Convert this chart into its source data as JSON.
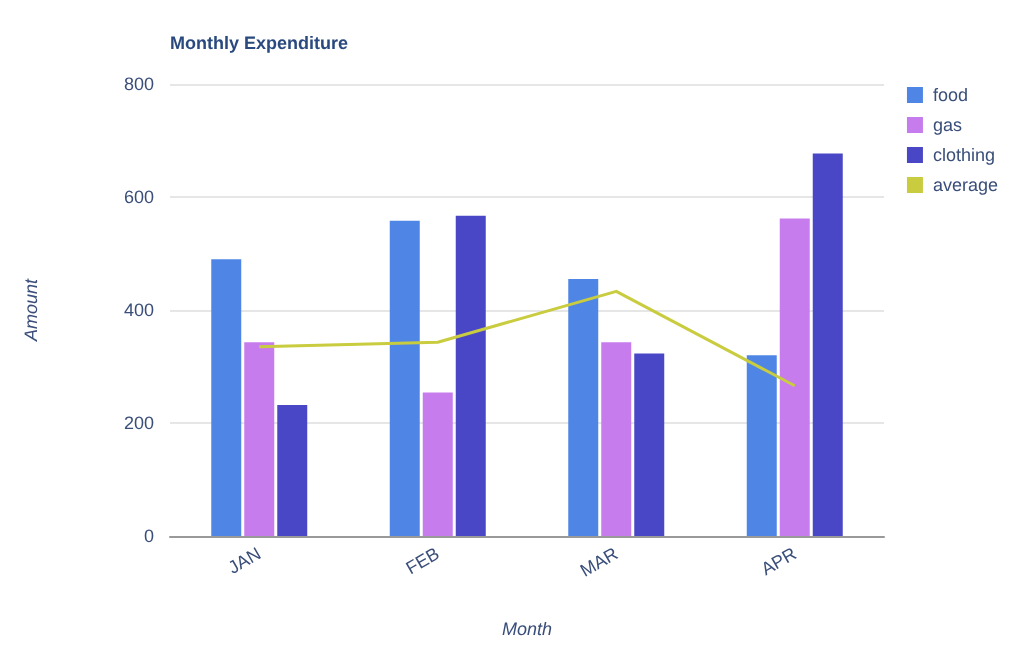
{
  "chart_data": {
    "type": "bar",
    "title": "Monthly Expenditure",
    "xlabel": "Month",
    "ylabel": "Amount",
    "categories": [
      "JAN",
      "FEB",
      "MAR",
      "APR"
    ],
    "series": [
      {
        "name": "food",
        "color": "#4f86e6",
        "values": [
          490,
          558,
          455,
          320
        ]
      },
      {
        "name": "gas",
        "color": "#c77cee",
        "values": [
          343,
          254,
          343,
          562
        ]
      },
      {
        "name": "clothing",
        "color": "#4a47c6",
        "values": [
          232,
          567,
          323,
          677
        ]
      },
      {
        "name": "average",
        "type": "line",
        "color": "#c9cc3f",
        "values": [
          335,
          343,
          433,
          266
        ]
      }
    ],
    "ylim": [
      0,
      800
    ],
    "yticks": [
      0,
      200,
      400,
      600,
      800
    ],
    "grid": "y",
    "legend": "top right",
    "marker": "none"
  }
}
